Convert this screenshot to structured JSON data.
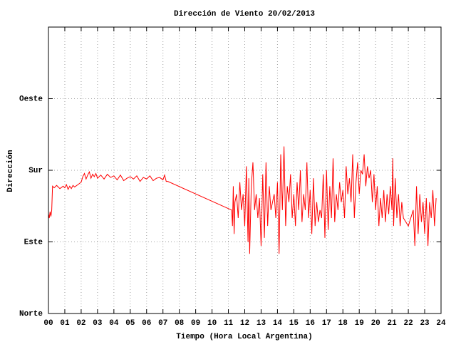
{
  "chart_data": {
    "type": "line",
    "title": "Dirección de Viento 20/02/2013",
    "xlabel": "Tiempo (Hora Local Argentina)",
    "ylabel": "Dirección",
    "grid": true,
    "xlim": [
      0,
      24
    ],
    "ylim": [
      0,
      360
    ],
    "xticks": [
      {
        "value": 0,
        "label": "00"
      },
      {
        "value": 1,
        "label": "01"
      },
      {
        "value": 2,
        "label": "02"
      },
      {
        "value": 3,
        "label": "03"
      },
      {
        "value": 4,
        "label": "04"
      },
      {
        "value": 5,
        "label": "05"
      },
      {
        "value": 6,
        "label": "06"
      },
      {
        "value": 7,
        "label": "07"
      },
      {
        "value": 8,
        "label": "08"
      },
      {
        "value": 9,
        "label": "09"
      },
      10,
      11,
      12,
      13,
      14,
      15,
      16,
      17,
      18,
      19,
      20,
      21,
      22,
      23,
      24
    ],
    "yticks": [
      {
        "value": 0,
        "label": "Norte"
      },
      {
        "value": 90,
        "label": "Este"
      },
      {
        "value": 180,
        "label": "Sur"
      },
      {
        "value": 270,
        "label": "Oeste"
      }
    ],
    "x": [
      0,
      0.05,
      0.1,
      0.15,
      0.2,
      0.25,
      0.35,
      0.5,
      0.7,
      0.9,
      1.0,
      1.1,
      1.2,
      1.3,
      1.4,
      1.5,
      1.6,
      1.8,
      2.0,
      2.1,
      2.2,
      2.3,
      2.4,
      2.5,
      2.6,
      2.7,
      2.8,
      2.9,
      3.0,
      3.2,
      3.4,
      3.6,
      3.8,
      4.0,
      4.2,
      4.4,
      4.6,
      4.8,
      5.0,
      5.2,
      5.4,
      5.6,
      5.8,
      6.0,
      6.2,
      6.4,
      6.6,
      6.8,
      7.0,
      7.1,
      7.2,
      7.3,
      11.2,
      11.25,
      11.3,
      11.35,
      11.4,
      11.5,
      11.6,
      11.7,
      11.8,
      11.9,
      12.0,
      12.1,
      12.2,
      12.25,
      12.3,
      12.4,
      12.5,
      12.6,
      12.7,
      12.8,
      12.9,
      13.0,
      13.1,
      13.2,
      13.3,
      13.4,
      13.5,
      13.6,
      13.7,
      13.8,
      13.9,
      14.0,
      14.1,
      14.2,
      14.3,
      14.4,
      14.5,
      14.6,
      14.7,
      14.8,
      14.9,
      15.0,
      15.1,
      15.2,
      15.3,
      15.4,
      15.5,
      15.6,
      15.7,
      15.8,
      15.9,
      16.0,
      16.1,
      16.2,
      16.3,
      16.4,
      16.5,
      16.6,
      16.7,
      16.8,
      16.9,
      17.0,
      17.1,
      17.2,
      17.3,
      17.4,
      17.5,
      17.6,
      17.7,
      17.8,
      17.9,
      18.0,
      18.1,
      18.2,
      18.3,
      18.4,
      18.5,
      18.6,
      18.7,
      18.8,
      18.9,
      19.0,
      19.1,
      19.2,
      19.3,
      19.4,
      19.5,
      19.6,
      19.7,
      19.8,
      19.9,
      20.0,
      20.1,
      20.2,
      20.3,
      20.4,
      20.5,
      20.6,
      20.7,
      20.8,
      20.9,
      21.0,
      21.05,
      21.1,
      21.2,
      21.3,
      21.4,
      21.5,
      21.6,
      21.7,
      22.0,
      22.3,
      22.4,
      22.5,
      22.6,
      22.7,
      22.8,
      22.9,
      23.0,
      23.1,
      23.2,
      23.3,
      23.4,
      23.5,
      23.6,
      23.7
    ],
    "series": [
      {
        "color": "#ff0000",
        "values": [
          125,
          120,
          128,
          122,
          130,
          160,
          158,
          161,
          157,
          160,
          158,
          162,
          156,
          160,
          157,
          161,
          159,
          162,
          165,
          172,
          176,
          169,
          174,
          178,
          170,
          175,
          172,
          176,
          170,
          174,
          169,
          175,
          171,
          173,
          168,
          174,
          167,
          170,
          172,
          169,
          173,
          166,
          171,
          169,
          173,
          167,
          170,
          171,
          168,
          174,
          166,
          166,
          130,
          110,
          160,
          100,
          140,
          150,
          120,
          165,
          130,
          150,
          110,
          185,
          90,
          170,
          75,
          160,
          190,
          130,
          150,
          120,
          145,
          85,
          175,
          95,
          190,
          110,
          160,
          130,
          140,
          150,
          120,
          165,
          75,
          200,
          130,
          210,
          110,
          160,
          140,
          175,
          120,
          150,
          110,
          165,
          130,
          180,
          115,
          150,
          130,
          190,
          120,
          155,
          100,
          170,
          110,
          140,
          115,
          130,
          120,
          175,
          95,
          180,
          105,
          160,
          120,
          195,
          115,
          150,
          130,
          165,
          140,
          155,
          120,
          185,
          150,
          170,
          140,
          200,
          120,
          165,
          190,
          150,
          180,
          175,
          200,
          160,
          185,
          170,
          180,
          140,
          175,
          130,
          160,
          110,
          145,
          120,
          155,
          115,
          150,
          125,
          160,
          130,
          195,
          110,
          170,
          120,
          150,
          110,
          140,
          120,
          110,
          130,
          85,
          160,
          100,
          150,
          115,
          140,
          100,
          145,
          85,
          140,
          120,
          155,
          110,
          145
        ]
      }
    ]
  }
}
